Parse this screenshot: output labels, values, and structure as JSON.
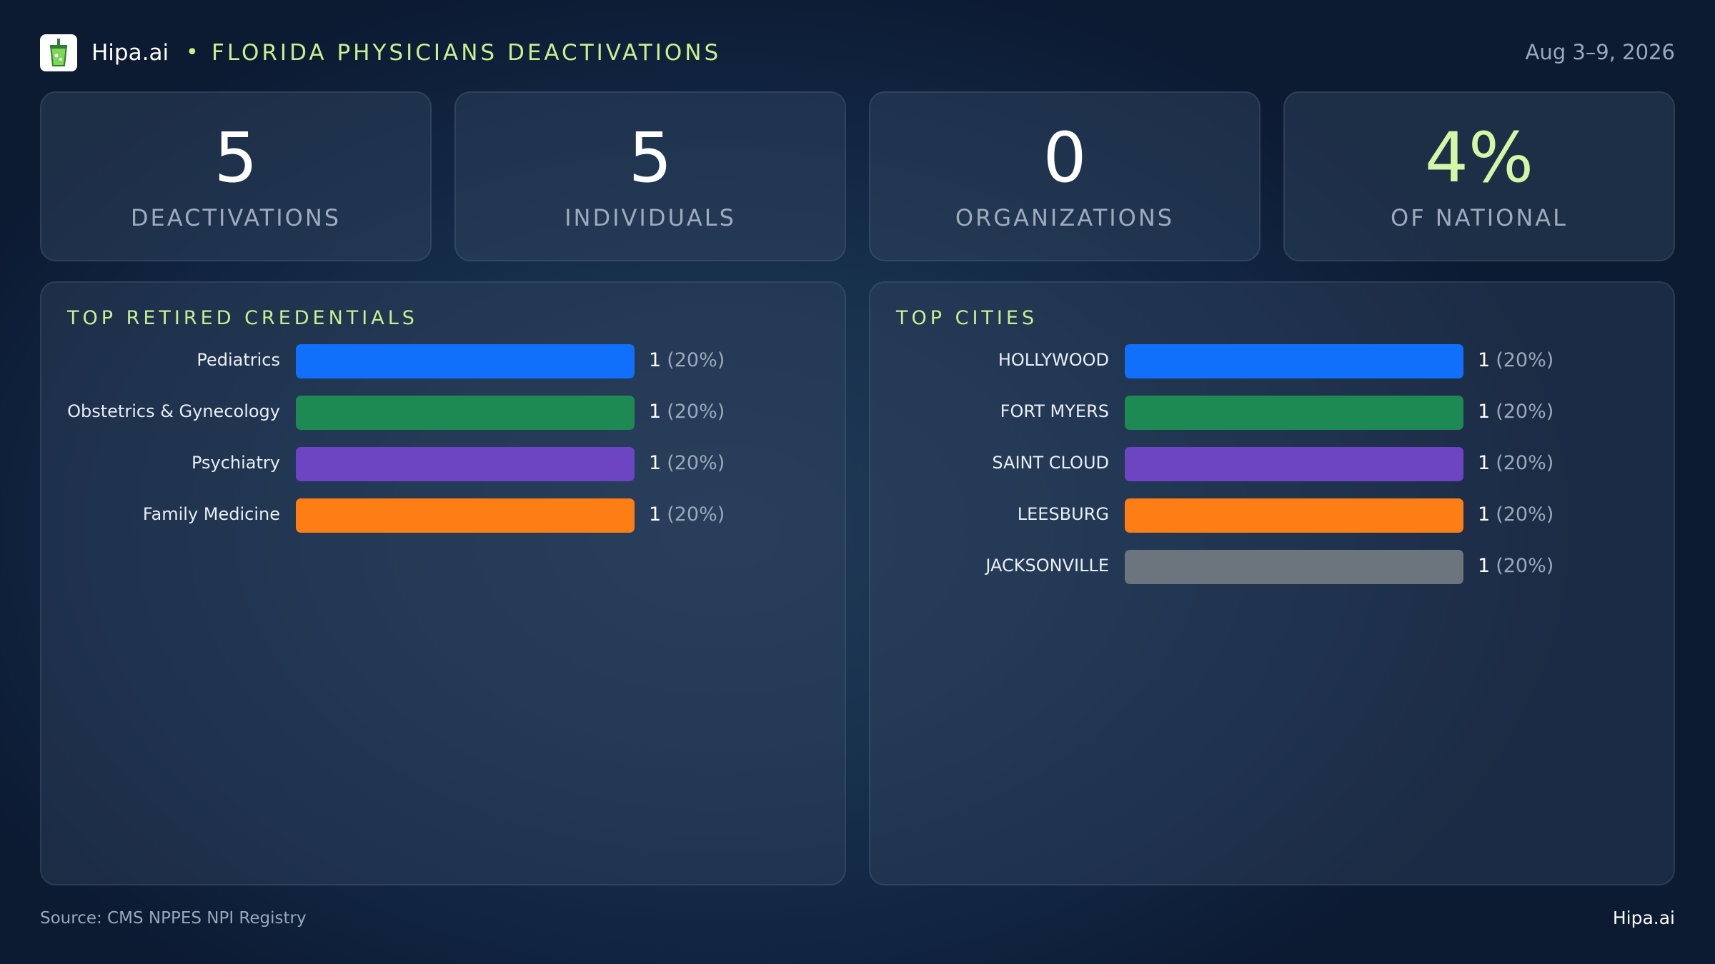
{
  "header": {
    "brand": "Hipa.ai",
    "bullet": "•",
    "title": "FLORIDA PHYSICIANS DEACTIVATIONS",
    "date": "Aug 3–9, 2026",
    "logo_icon": "drink-cup-icon"
  },
  "stats": [
    {
      "value": "5",
      "label": "DEACTIVATIONS"
    },
    {
      "value": "5",
      "label": "INDIVIDUALS"
    },
    {
      "value": "0",
      "label": "ORGANIZATIONS"
    },
    {
      "value": "4%",
      "label": "OF NATIONAL",
      "accent": "#d3f7a7"
    }
  ],
  "credentials": {
    "title": "TOP RETIRED CREDENTIALS",
    "rows": [
      {
        "label": "Pediatrics",
        "count": "1",
        "pct": "(20%)",
        "color": "#1170fb"
      },
      {
        "label": "Obstetrics & Gynecology",
        "count": "1",
        "pct": "(20%)",
        "color": "#1c8a52"
      },
      {
        "label": "Psychiatry",
        "count": "1",
        "pct": "(20%)",
        "color": "#6d45c2"
      },
      {
        "label": "Family Medicine",
        "count": "1",
        "pct": "(20%)",
        "color": "#fd7e14"
      }
    ]
  },
  "cities": {
    "title": "TOP CITIES",
    "rows": [
      {
        "label": "HOLLYWOOD",
        "count": "1",
        "pct": "(20%)",
        "color": "#1170fb"
      },
      {
        "label": "FORT MYERS",
        "count": "1",
        "pct": "(20%)",
        "color": "#1c8a52"
      },
      {
        "label": "SAINT CLOUD",
        "count": "1",
        "pct": "(20%)",
        "color": "#6d45c2"
      },
      {
        "label": "LEESBURG",
        "count": "1",
        "pct": "(20%)",
        "color": "#fd7e14"
      },
      {
        "label": "JACKSONVILLE",
        "count": "1",
        "pct": "(20%)",
        "color": "#6c757d"
      }
    ]
  },
  "footer": {
    "source": "Source: CMS NPPES NPI Registry",
    "brand": "Hipa.ai"
  }
}
